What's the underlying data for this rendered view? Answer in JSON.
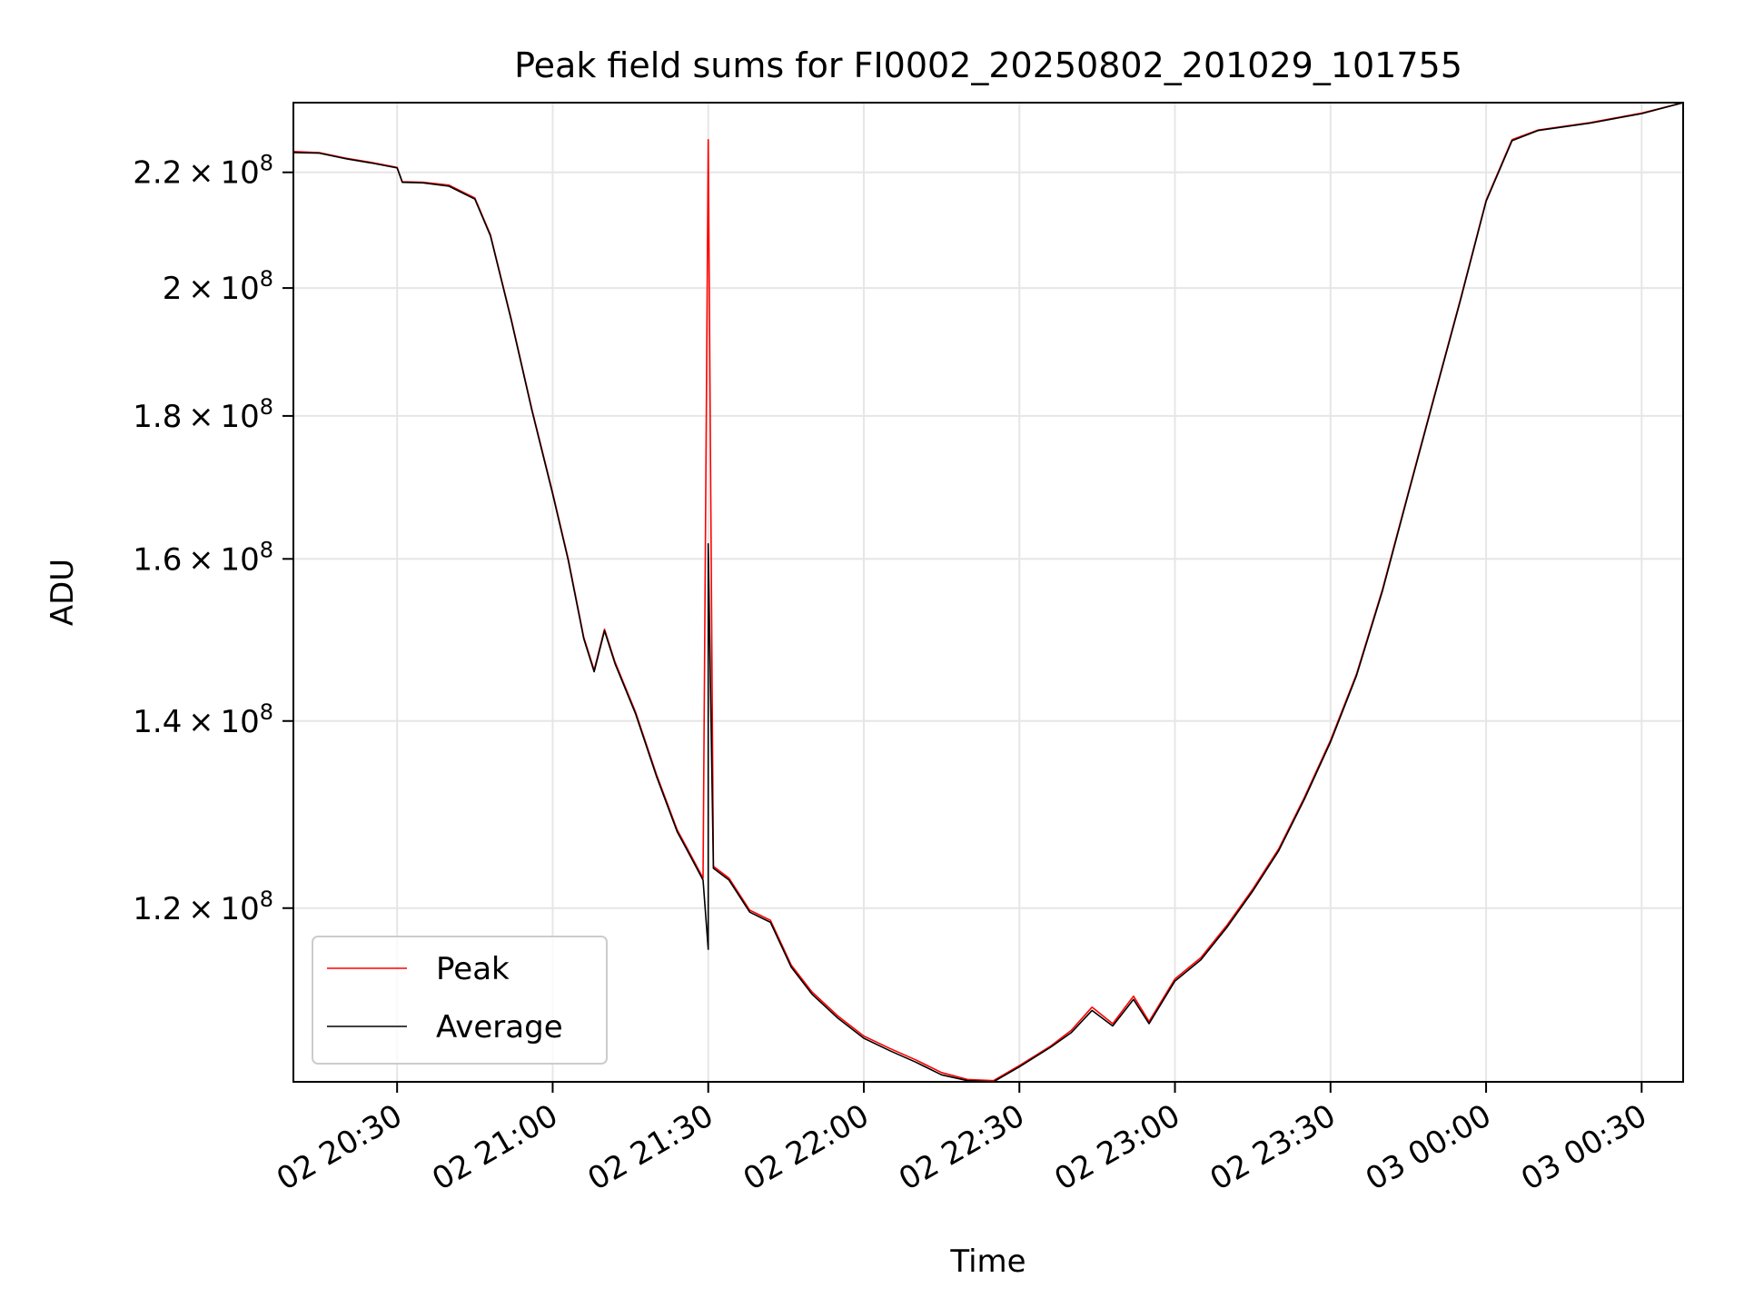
{
  "chart_data": {
    "type": "line",
    "title": "Peak field sums for FI0002_20250802_201029_101755",
    "xlabel": "Time",
    "ylabel": "ADU",
    "y_scale": "log",
    "grid": true,
    "legend_position": "lower-left",
    "x_range": [
      "2025-08-02 20:10",
      "2025-08-03 00:38"
    ],
    "y_range": [
      104000000,
      233000000
    ],
    "x_ticks": [
      {
        "t": "2025-08-02 20:30",
        "label": "02 20:30"
      },
      {
        "t": "2025-08-02 21:00",
        "label": "02 21:00"
      },
      {
        "t": "2025-08-02 21:30",
        "label": "02 21:30"
      },
      {
        "t": "2025-08-02 22:00",
        "label": "02 22:00"
      },
      {
        "t": "2025-08-02 22:30",
        "label": "02 22:30"
      },
      {
        "t": "2025-08-02 23:00",
        "label": "02 23:00"
      },
      {
        "t": "2025-08-02 23:30",
        "label": "02 23:30"
      },
      {
        "t": "2025-08-03 00:00",
        "label": "03 00:00"
      },
      {
        "t": "2025-08-03 00:30",
        "label": "03 00:30"
      }
    ],
    "y_ticks": [
      {
        "value": 120000000,
        "mantissa": "1.2",
        "exp": "8"
      },
      {
        "value": 140000000,
        "mantissa": "1.4",
        "exp": "8"
      },
      {
        "value": 160000000,
        "mantissa": "1.6",
        "exp": "8"
      },
      {
        "value": 180000000,
        "mantissa": "1.8",
        "exp": "8"
      },
      {
        "value": 200000000,
        "mantissa": "2",
        "exp": "8"
      },
      {
        "value": 220000000,
        "mantissa": "2.2",
        "exp": "8"
      }
    ],
    "y_tick_times": "×",
    "y_tick_base": "10",
    "series": [
      {
        "name": "Peak",
        "color": "#ff0000",
        "points": [
          [
            "2025-08-02 20:10",
            223800000
          ],
          [
            "2025-08-02 20:15",
            223600000
          ],
          [
            "2025-08-02 20:20",
            222600000
          ],
          [
            "2025-08-02 20:25",
            221800000
          ],
          [
            "2025-08-02 20:30",
            220900000
          ],
          [
            "2025-08-02 20:31",
            218300000
          ],
          [
            "2025-08-02 20:35",
            218200000
          ],
          [
            "2025-08-02 20:40",
            217700000
          ],
          [
            "2025-08-02 20:45",
            215400000
          ],
          [
            "2025-08-02 20:48",
            209000000
          ],
          [
            "2025-08-02 20:52",
            195000000
          ],
          [
            "2025-08-02 20:56",
            181000000
          ],
          [
            "2025-08-02 21:00",
            169000000
          ],
          [
            "2025-08-02 21:03",
            160000000
          ],
          [
            "2025-08-02 21:06",
            150000000
          ],
          [
            "2025-08-02 21:08",
            146000000
          ],
          [
            "2025-08-02 21:10",
            151000000
          ],
          [
            "2025-08-02 21:12",
            147000000
          ],
          [
            "2025-08-02 21:16",
            141000000
          ],
          [
            "2025-08-02 21:20",
            134000000
          ],
          [
            "2025-08-02 21:24",
            128000000
          ],
          [
            "2025-08-02 21:26",
            126000000
          ],
          [
            "2025-08-02 21:29",
            123000000
          ],
          [
            "2025-08-02 21:30",
            226000000
          ],
          [
            "2025-08-02 21:31",
            124200000
          ],
          [
            "2025-08-02 21:34",
            123000000
          ],
          [
            "2025-08-02 21:38",
            119800000
          ],
          [
            "2025-08-02 21:42",
            118800000
          ],
          [
            "2025-08-02 21:46",
            114500000
          ],
          [
            "2025-08-02 21:50",
            112000000
          ],
          [
            "2025-08-02 21:55",
            109800000
          ],
          [
            "2025-08-02 22:00",
            108000000
          ],
          [
            "2025-08-02 22:05",
            106900000
          ],
          [
            "2025-08-02 22:10",
            105900000
          ],
          [
            "2025-08-02 22:15",
            104800000
          ],
          [
            "2025-08-02 22:20",
            104200000
          ],
          [
            "2025-08-02 22:25",
            104100000
          ],
          [
            "2025-08-02 22:30",
            105400000
          ],
          [
            "2025-08-02 22:36",
            107100000
          ],
          [
            "2025-08-02 22:40",
            108500000
          ],
          [
            "2025-08-02 22:44",
            110600000
          ],
          [
            "2025-08-02 22:48",
            109100000
          ],
          [
            "2025-08-02 22:52",
            111600000
          ],
          [
            "2025-08-02 22:55",
            109300000
          ],
          [
            "2025-08-02 23:00",
            113200000
          ],
          [
            "2025-08-02 23:05",
            115200000
          ],
          [
            "2025-08-02 23:10",
            118300000
          ],
          [
            "2025-08-02 23:15",
            121900000
          ],
          [
            "2025-08-02 23:20",
            126000000
          ],
          [
            "2025-08-02 23:25",
            131500000
          ],
          [
            "2025-08-02 23:30",
            137800000
          ],
          [
            "2025-08-02 23:35",
            145500000
          ],
          [
            "2025-08-02 23:40",
            156000000
          ],
          [
            "2025-08-02 23:45",
            169000000
          ],
          [
            "2025-08-02 23:50",
            183000000
          ],
          [
            "2025-08-02 23:55",
            198000000
          ],
          [
            "2025-08-03 00:00",
            215000000
          ],
          [
            "2025-08-03 00:05",
            226000000
          ],
          [
            "2025-08-03 00:10",
            227800000
          ],
          [
            "2025-08-03 00:20",
            229200000
          ],
          [
            "2025-08-03 00:30",
            231000000
          ],
          [
            "2025-08-03 00:38",
            233000000
          ]
        ]
      },
      {
        "name": "Average",
        "color": "#000000",
        "points": [
          [
            "2025-08-02 20:10",
            223600000
          ],
          [
            "2025-08-02 20:15",
            223500000
          ],
          [
            "2025-08-02 20:20",
            222500000
          ],
          [
            "2025-08-02 20:25",
            221700000
          ],
          [
            "2025-08-02 20:30",
            220800000
          ],
          [
            "2025-08-02 20:31",
            218200000
          ],
          [
            "2025-08-02 20:35",
            218100000
          ],
          [
            "2025-08-02 20:40",
            217500000
          ],
          [
            "2025-08-02 20:45",
            215200000
          ],
          [
            "2025-08-02 20:48",
            208800000
          ],
          [
            "2025-08-02 20:52",
            194800000
          ],
          [
            "2025-08-02 20:56",
            180800000
          ],
          [
            "2025-08-02 21:00",
            168800000
          ],
          [
            "2025-08-02 21:03",
            159800000
          ],
          [
            "2025-08-02 21:06",
            149800000
          ],
          [
            "2025-08-02 21:08",
            145800000
          ],
          [
            "2025-08-02 21:10",
            150800000
          ],
          [
            "2025-08-02 21:12",
            146800000
          ],
          [
            "2025-08-02 21:16",
            140800000
          ],
          [
            "2025-08-02 21:20",
            133800000
          ],
          [
            "2025-08-02 21:24",
            127800000
          ],
          [
            "2025-08-02 21:26",
            125800000
          ],
          [
            "2025-08-02 21:29",
            122800000
          ],
          [
            "2025-08-02 21:30",
            116000000
          ],
          [
            "2025-08-02 21:30",
            162000000
          ],
          [
            "2025-08-02 21:31",
            124000000
          ],
          [
            "2025-08-02 21:34",
            122800000
          ],
          [
            "2025-08-02 21:38",
            119600000
          ],
          [
            "2025-08-02 21:42",
            118600000
          ],
          [
            "2025-08-02 21:46",
            114300000
          ],
          [
            "2025-08-02 21:50",
            111800000
          ],
          [
            "2025-08-02 21:55",
            109600000
          ],
          [
            "2025-08-02 22:00",
            107800000
          ],
          [
            "2025-08-02 22:05",
            106700000
          ],
          [
            "2025-08-02 22:10",
            105700000
          ],
          [
            "2025-08-02 22:15",
            104600000
          ],
          [
            "2025-08-02 22:20",
            104100000
          ],
          [
            "2025-08-02 22:25",
            104000000
          ],
          [
            "2025-08-02 22:30",
            105300000
          ],
          [
            "2025-08-02 22:36",
            107000000
          ],
          [
            "2025-08-02 22:40",
            108300000
          ],
          [
            "2025-08-02 22:44",
            110300000
          ],
          [
            "2025-08-02 22:48",
            108900000
          ],
          [
            "2025-08-02 22:52",
            111300000
          ],
          [
            "2025-08-02 22:55",
            109100000
          ],
          [
            "2025-08-02 23:00",
            113000000
          ],
          [
            "2025-08-02 23:05",
            115000000
          ],
          [
            "2025-08-02 23:10",
            118100000
          ],
          [
            "2025-08-02 23:15",
            121700000
          ],
          [
            "2025-08-02 23:20",
            125800000
          ],
          [
            "2025-08-02 23:25",
            131300000
          ],
          [
            "2025-08-02 23:30",
            137600000
          ],
          [
            "2025-08-02 23:35",
            145300000
          ],
          [
            "2025-08-02 23:40",
            155800000
          ],
          [
            "2025-08-02 23:45",
            168800000
          ],
          [
            "2025-08-02 23:50",
            182800000
          ],
          [
            "2025-08-02 23:55",
            197800000
          ],
          [
            "2025-08-03 00:00",
            214800000
          ],
          [
            "2025-08-03 00:05",
            225800000
          ],
          [
            "2025-08-03 00:10",
            227700000
          ],
          [
            "2025-08-03 00:20",
            229100000
          ],
          [
            "2025-08-03 00:30",
            230900000
          ],
          [
            "2025-08-03 00:38",
            233000000
          ]
        ]
      }
    ]
  }
}
